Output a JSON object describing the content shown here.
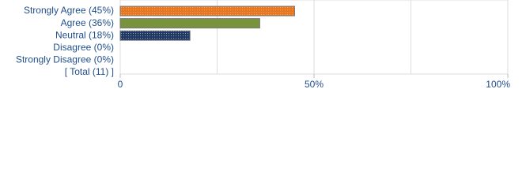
{
  "chart_data": {
    "type": "bar",
    "orientation": "horizontal",
    "categories": [
      "Strongly Agree (45%)",
      "Agree (36%)",
      "Neutral (18%)",
      "Disagree (0%)",
      "Strongly Disagree (0%)",
      "[ Total (11) ]"
    ],
    "values": [
      45,
      36,
      18,
      0,
      0,
      null
    ],
    "colors": [
      "#e8761f",
      "#77933c",
      "#1f3864",
      "#888888",
      "#888888",
      "#888888"
    ],
    "xlim": [
      0,
      100
    ],
    "xticks": [
      0,
      {
        "value": 50,
        "label": "50%"
      },
      {
        "value": 100,
        "label": "100%"
      }
    ],
    "minor_grid": [
      25,
      75
    ],
    "grid": true
  }
}
